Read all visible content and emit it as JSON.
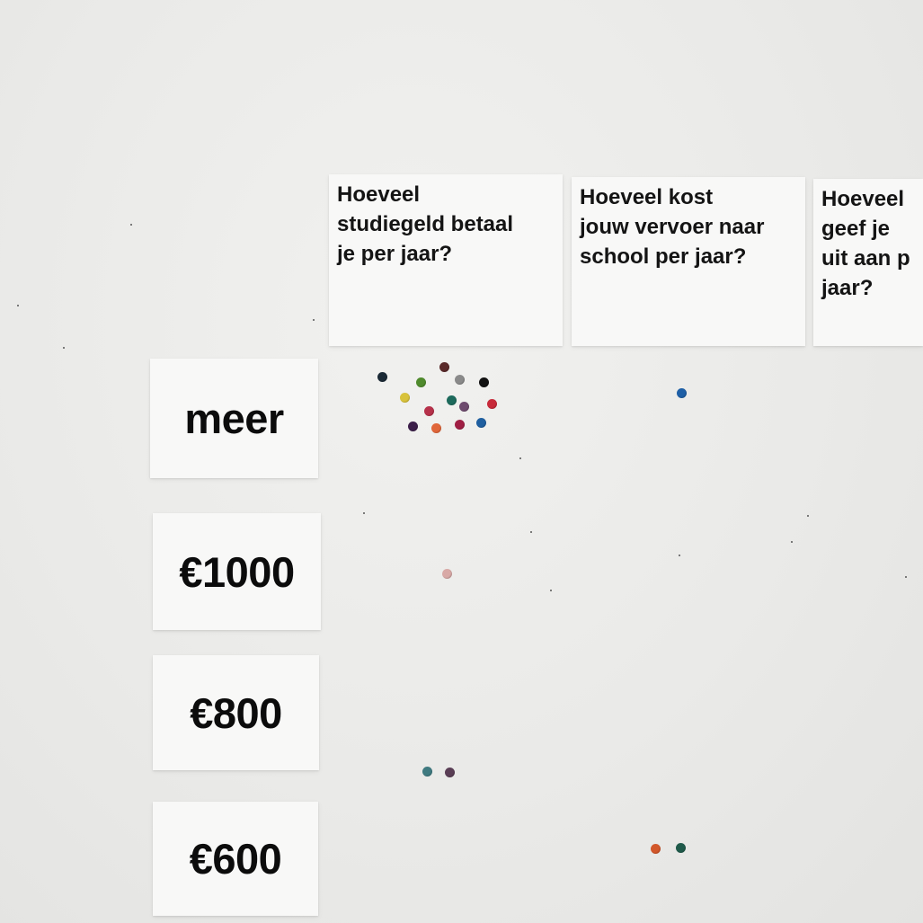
{
  "question_cards": [
    {
      "text": "Hoeveel\nstudiegeld betaal\nje per jaar?"
    },
    {
      "text": "Hoeveel kost\njouw vervoer naar\nschool per jaar?"
    },
    {
      "text": "Hoeveel geef je\nuit aan p\njaar?"
    }
  ],
  "row_cards": [
    {
      "label": "meer"
    },
    {
      "label": "€1000"
    },
    {
      "label": "€800"
    },
    {
      "label": "€600"
    }
  ],
  "dots": [
    {
      "column": "studiegeld",
      "row": "meer",
      "color": "#1b2a36"
    },
    {
      "column": "studiegeld",
      "row": "meer",
      "color": "#5a2a2a"
    },
    {
      "column": "studiegeld",
      "row": "meer",
      "color": "#4f8a2c"
    },
    {
      "column": "studiegeld",
      "row": "meer",
      "color": "#8a8a8a"
    },
    {
      "column": "studiegeld",
      "row": "meer",
      "color": "#121212"
    },
    {
      "column": "studiegeld",
      "row": "meer",
      "color": "#d8c23a"
    },
    {
      "column": "studiegeld",
      "row": "meer",
      "color": "#1d6a5c"
    },
    {
      "column": "studiegeld",
      "row": "meer",
      "color": "#6e4b6e"
    },
    {
      "column": "studiegeld",
      "row": "meer",
      "color": "#b6314a"
    },
    {
      "column": "studiegeld",
      "row": "meer",
      "color": "#c82a3a"
    },
    {
      "column": "studiegeld",
      "row": "meer",
      "color": "#3c1f4a"
    },
    {
      "column": "studiegeld",
      "row": "meer",
      "color": "#e0663a"
    },
    {
      "column": "studiegeld",
      "row": "meer",
      "color": "#a01f44"
    },
    {
      "column": "studiegeld",
      "row": "meer",
      "color": "#1f5fa0"
    },
    {
      "column": "vervoer",
      "row": "meer",
      "color": "#1e5fa6"
    },
    {
      "column": "studiegeld",
      "row": "€1000",
      "color": "#d8a9a6"
    },
    {
      "column": "studiegeld",
      "row": "€800",
      "color": "#3f7a80"
    },
    {
      "column": "studiegeld",
      "row": "€800",
      "color": "#5a3e55"
    },
    {
      "column": "vervoer",
      "row": "€600",
      "color": "#d2572a"
    },
    {
      "column": "vervoer",
      "row": "€600",
      "color": "#1f5a4a"
    }
  ]
}
